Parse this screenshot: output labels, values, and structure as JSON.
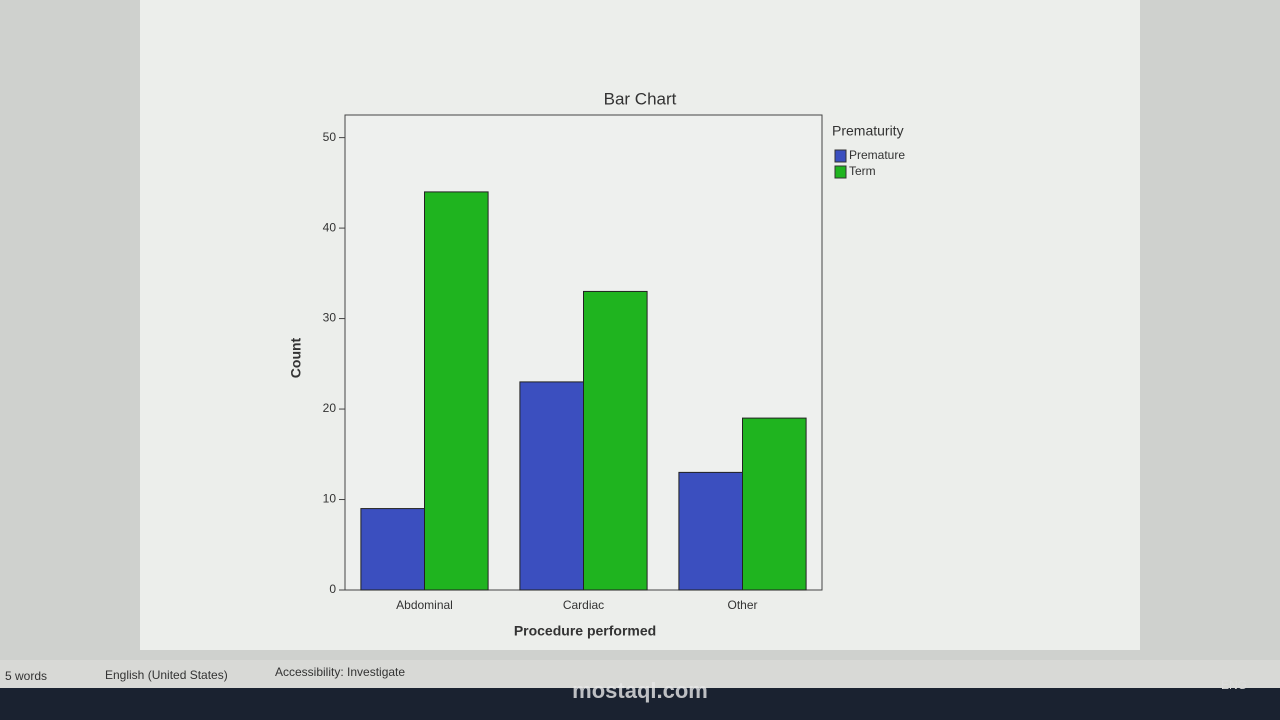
{
  "chart_data": {
    "type": "bar",
    "title": "Bar Chart",
    "x_label": "Procedure performed",
    "y_label": "Count",
    "categories": [
      "Abdominal",
      "Cardiac",
      "Other"
    ],
    "series": [
      {
        "name": "Premature",
        "color": "#3b4fbf",
        "values": [
          9,
          23,
          13
        ]
      },
      {
        "name": "Term",
        "color": "#1fb41f",
        "values": [
          44,
          33,
          19
        ]
      }
    ],
    "legend_title": "Prematurity",
    "legend_position": "outside-right",
    "ylim": [
      0,
      52.5
    ],
    "yticks": [
      0,
      10,
      20,
      30,
      40,
      50
    ],
    "grid": false
  },
  "status_bar": {
    "words": "5 words",
    "language": "English (United States)",
    "accessibility": "Accessibility: Investigate"
  },
  "taskbar": {
    "language": "ENG"
  },
  "watermark": "mostaql.com"
}
